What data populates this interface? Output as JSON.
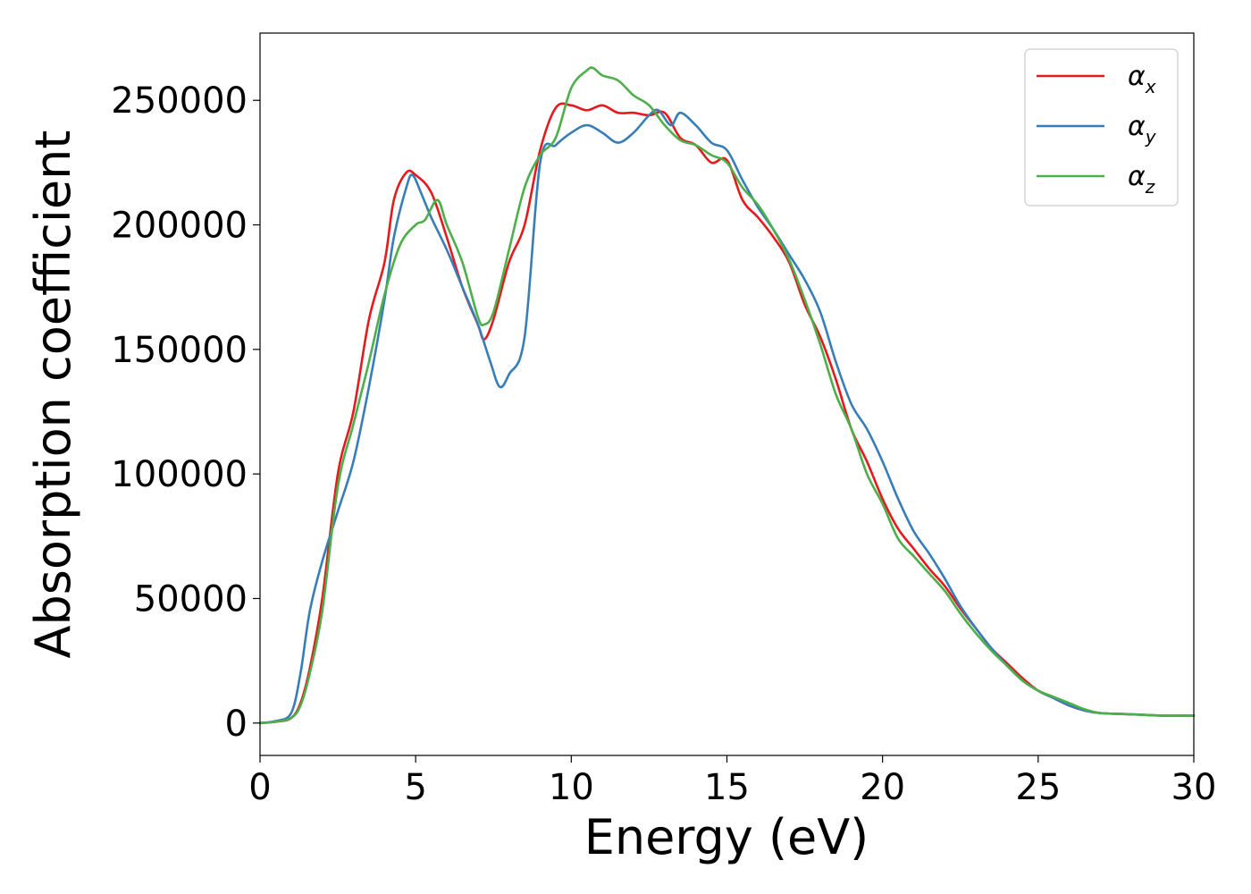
{
  "chart_data": {
    "type": "line",
    "title": "",
    "xlabel": "Energy (eV)",
    "ylabel": "Absorption coefficient",
    "xlim": [
      0,
      30
    ],
    "ylim": [
      -13000,
      277000
    ],
    "xticks": [
      0,
      5,
      10,
      15,
      20,
      25,
      30
    ],
    "xtick_labels": [
      "0",
      "5",
      "10",
      "15",
      "20",
      "25",
      "30"
    ],
    "yticks": [
      0,
      50000,
      100000,
      150000,
      200000,
      250000
    ],
    "ytick_labels": [
      "0",
      "50000",
      "100000",
      "150000",
      "200000",
      "250000"
    ],
    "grid": false,
    "legend_position": "top-right",
    "series": [
      {
        "name": "α_x",
        "legend_main": "α",
        "legend_sub": "x",
        "color": "#e41a1c",
        "x": [
          0,
          0.5,
          1.0,
          1.3,
          1.6,
          2.0,
          2.5,
          3.0,
          3.5,
          4.0,
          4.3,
          4.7,
          5.0,
          5.5,
          6.0,
          6.5,
          7.0,
          7.2,
          7.5,
          8.0,
          8.5,
          9.0,
          9.5,
          10.0,
          10.5,
          11.0,
          11.5,
          12.0,
          12.5,
          13.0,
          13.5,
          14.0,
          14.5,
          15.0,
          15.5,
          16.0,
          16.5,
          17.0,
          17.5,
          18.0,
          18.5,
          19.0,
          19.5,
          20.0,
          20.5,
          21.0,
          21.5,
          22.0,
          22.5,
          23.0,
          23.5,
          24.0,
          24.5,
          25.0,
          25.5,
          26.0,
          26.5,
          27.0,
          28.0,
          29.0,
          30.0
        ],
        "values": [
          0,
          500,
          2000,
          8000,
          22000,
          50000,
          100000,
          125000,
          162000,
          185000,
          210000,
          221000,
          220000,
          213000,
          195000,
          175000,
          160000,
          154000,
          162000,
          185000,
          200000,
          230000,
          247000,
          248000,
          246000,
          248000,
          245000,
          245000,
          244000,
          245000,
          235000,
          232000,
          225000,
          226000,
          210000,
          203000,
          195000,
          185000,
          168000,
          155000,
          138000,
          118000,
          105000,
          90000,
          78000,
          70000,
          62000,
          55000,
          46000,
          38000,
          30000,
          24000,
          18000,
          13000,
          10000,
          7000,
          5000,
          4000,
          3500,
          3000,
          3000
        ]
      },
      {
        "name": "α_y",
        "legend_main": "α",
        "legend_sub": "y",
        "color": "#377eb8",
        "x": [
          0,
          0.5,
          1.0,
          1.3,
          1.6,
          2.0,
          2.5,
          3.0,
          3.5,
          4.0,
          4.3,
          4.7,
          4.9,
          5.2,
          5.5,
          6.0,
          6.5,
          7.0,
          7.4,
          7.7,
          8.0,
          8.5,
          9.0,
          9.5,
          10.0,
          10.5,
          11.0,
          11.5,
          12.0,
          12.5,
          12.8,
          13.2,
          13.5,
          14.0,
          14.5,
          15.0,
          15.5,
          16.0,
          16.5,
          17.0,
          17.5,
          18.0,
          18.5,
          19.0,
          19.5,
          20.0,
          20.5,
          21.0,
          21.5,
          22.0,
          22.5,
          23.0,
          23.5,
          24.0,
          24.5,
          25.0,
          25.5,
          26.0,
          26.5,
          27.0,
          28.0,
          29.0,
          30.0
        ],
        "values": [
          0,
          800,
          4000,
          20000,
          45000,
          65000,
          85000,
          105000,
          135000,
          170000,
          195000,
          215000,
          220000,
          212000,
          203000,
          190000,
          175000,
          160000,
          145000,
          135000,
          140000,
          155000,
          225000,
          232000,
          237000,
          240000,
          237000,
          233000,
          237000,
          244000,
          246000,
          240000,
          245000,
          240000,
          233000,
          230000,
          218000,
          207000,
          198000,
          188000,
          178000,
          165000,
          145000,
          128000,
          118000,
          105000,
          90000,
          77000,
          68000,
          58000,
          47000,
          38000,
          30000,
          23000,
          17000,
          13000,
          10000,
          7000,
          5000,
          4000,
          3500,
          3000,
          3000
        ]
      },
      {
        "name": "α_z",
        "legend_main": "α",
        "legend_sub": "z",
        "color": "#4daf4a",
        "x": [
          0,
          0.5,
          1.0,
          1.3,
          1.6,
          2.0,
          2.5,
          3.0,
          3.5,
          4.0,
          4.5,
          5.0,
          5.3,
          5.7,
          6.0,
          6.5,
          7.0,
          7.2,
          7.5,
          8.0,
          8.5,
          9.0,
          9.5,
          10.0,
          10.5,
          10.7,
          11.0,
          11.5,
          12.0,
          12.5,
          13.0,
          13.5,
          14.0,
          14.5,
          15.0,
          15.5,
          16.0,
          16.5,
          17.0,
          17.5,
          18.0,
          18.5,
          19.0,
          19.5,
          20.0,
          20.5,
          21.0,
          21.5,
          22.0,
          22.5,
          23.0,
          23.5,
          24.0,
          24.5,
          25.0,
          25.5,
          26.0,
          26.5,
          27.0,
          28.0,
          29.0,
          30.0
        ],
        "values": [
          0,
          500,
          2000,
          7000,
          20000,
          45000,
          95000,
          120000,
          145000,
          172000,
          192000,
          200000,
          202000,
          210000,
          200000,
          185000,
          163000,
          160000,
          165000,
          190000,
          215000,
          228000,
          235000,
          255000,
          262000,
          263000,
          260000,
          258000,
          252000,
          248000,
          240000,
          234000,
          232000,
          228000,
          225000,
          215000,
          208000,
          198000,
          186000,
          170000,
          152000,
          132000,
          118000,
          100000,
          88000,
          74000,
          67000,
          60000,
          53000,
          44000,
          36000,
          29000,
          23000,
          17000,
          13000,
          10500,
          8000,
          5500,
          4000,
          3500,
          3000,
          3000
        ]
      }
    ]
  }
}
